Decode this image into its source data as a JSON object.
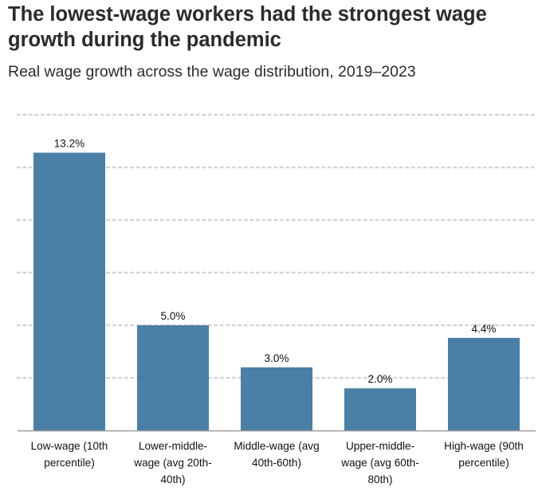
{
  "header": {
    "title": "The lowest-wage workers had the strongest wage growth during the pandemic",
    "subtitle": "Real wage growth across the wage distribution, 2019–2023"
  },
  "chart_data": {
    "type": "bar",
    "title": "The lowest-wage workers had the strongest wage growth during the pandemic",
    "subtitle": "Real wage growth across the wage distribution, 2019–2023",
    "categories": [
      "Low-wage (10th percentile)",
      "Lower-middle-wage (avg 20th-40th)",
      "Middle-wage (avg 40th-60th)",
      "Upper-middle-wage (avg 60th-80th)",
      "High-wage (90th percentile)"
    ],
    "values": [
      13.2,
      5.0,
      3.0,
      2.0,
      4.4
    ],
    "data_labels": [
      "13.2%",
      "5.0%",
      "3.0%",
      "2.0%",
      "4.4%"
    ],
    "xlabel": "",
    "ylabel": "",
    "ylim": [
      0,
      15
    ],
    "grid": true,
    "legend": "none",
    "bar_color": "#4a7fa6",
    "grid_color": "#d3d3d3",
    "axis_color": "#9a9a9a"
  }
}
